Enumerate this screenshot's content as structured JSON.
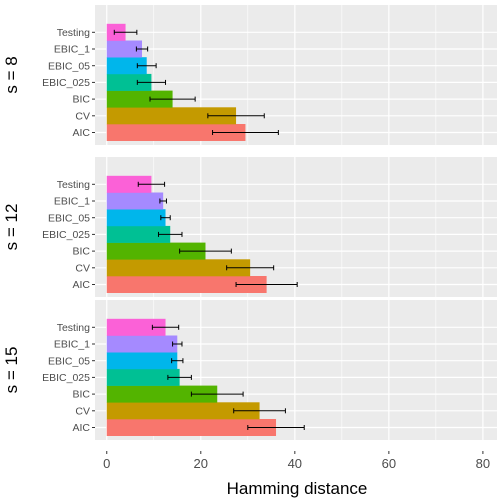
{
  "chart_data": {
    "type": "bar",
    "orientation": "horizontal",
    "xlabel": "Hamming distance",
    "ylabel": "",
    "xlim": [
      -2.5,
      83
    ],
    "xticks": [
      0,
      20,
      40,
      60,
      80
    ],
    "xtick_labels": [
      "0",
      "20",
      "40",
      "60",
      "80"
    ],
    "grid": true,
    "legend": "none",
    "categories": [
      "AIC",
      "CV",
      "BIC",
      "EBIC_025",
      "EBIC_05",
      "EBIC_1",
      "Testing"
    ],
    "colors": {
      "AIC": "#F8766D",
      "CV": "#C49A00",
      "BIC": "#53B400",
      "EBIC_025": "#00C094",
      "EBIC_05": "#00B6EB",
      "EBIC_1": "#A58AFF",
      "Testing": "#FB61D7"
    },
    "panels": [
      {
        "label": "s = 8",
        "values": [
          29.5,
          27.5,
          14.0,
          9.5,
          8.5,
          7.5,
          4.0
        ],
        "errors": [
          7.0,
          6.0,
          4.8,
          3.0,
          2.0,
          1.2,
          2.4
        ]
      },
      {
        "label": "s = 12",
        "values": [
          34.0,
          30.5,
          21.0,
          13.5,
          12.5,
          12.0,
          9.5
        ],
        "errors": [
          6.5,
          5.0,
          5.5,
          2.5,
          1.0,
          0.7,
          2.8
        ]
      },
      {
        "label": "s = 15",
        "values": [
          36.0,
          32.5,
          23.5,
          15.5,
          15.0,
          15.0,
          12.5
        ],
        "errors": [
          6.0,
          5.5,
          5.5,
          2.5,
          1.2,
          1.0,
          2.8
        ]
      }
    ]
  }
}
